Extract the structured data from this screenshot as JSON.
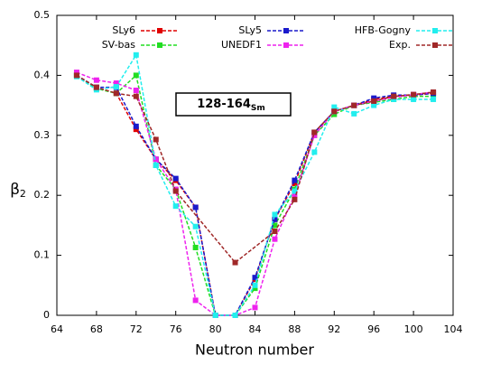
{
  "chart_data": {
    "type": "line",
    "xlabel": "Neutron number",
    "ylabel": {
      "main": "β",
      "sub": "2"
    },
    "annotation": {
      "main": "128-164",
      "sub": "Sm"
    },
    "x": [
      66,
      68,
      70,
      72,
      74,
      76,
      78,
      80,
      82,
      84,
      86,
      88,
      90,
      92,
      94,
      96,
      98,
      100,
      102
    ],
    "xlim": [
      64,
      104
    ],
    "xticks": [
      64,
      68,
      72,
      76,
      80,
      84,
      88,
      92,
      96,
      100,
      104
    ],
    "ylim": [
      0,
      0.5
    ],
    "yticks": [
      0,
      0.1,
      0.2,
      0.3,
      0.4,
      0.5
    ],
    "series": [
      {
        "name": "SLy6",
        "color": "#e00000",
        "values": [
          0.4,
          0.38,
          0.37,
          0.31,
          0.26,
          0.225,
          0.18,
          0,
          0,
          0.06,
          0.16,
          0.22,
          0.305,
          0.34,
          0.35,
          0.36,
          0.365,
          0.367,
          0.37
        ]
      },
      {
        "name": "SV-bas",
        "color": "#22dd22",
        "values": [
          0.4,
          0.378,
          0.37,
          0.4,
          0.25,
          0.21,
          0.113,
          0,
          0,
          0.045,
          0.15,
          0.21,
          0.3,
          0.335,
          0.35,
          0.355,
          0.36,
          0.365,
          0.365
        ]
      },
      {
        "name": "SLy5",
        "color": "#1a1acc",
        "values": [
          0.4,
          0.38,
          0.38,
          0.315,
          0.26,
          0.228,
          0.18,
          0,
          0,
          0.063,
          0.16,
          0.225,
          0.305,
          0.34,
          0.35,
          0.362,
          0.367,
          0.367,
          0.37
        ]
      },
      {
        "name": "UNEDF1",
        "color": "#ee22ee",
        "values": [
          0.405,
          0.392,
          0.387,
          0.375,
          0.26,
          0.21,
          0.025,
          0,
          0,
          0.013,
          0.127,
          0.2,
          0.3,
          0.34,
          0.35,
          0.357,
          0.363,
          0.368,
          0.372
        ]
      },
      {
        "name": "HFB-Gogny",
        "color": "#22eeee",
        "values": [
          0.398,
          0.376,
          0.381,
          0.434,
          0.25,
          0.182,
          0.148,
          0,
          0,
          0.05,
          0.168,
          0.207,
          0.272,
          0.347,
          0.336,
          0.35,
          0.36,
          0.36,
          0.36
        ]
      },
      {
        "name": "Exp.",
        "color": "#a02828",
        "x": [
          66,
          68,
          70,
          72,
          74,
          76,
          82,
          86,
          88,
          90,
          92,
          94,
          96,
          98,
          100,
          102
        ],
        "values": [
          0.4,
          0.38,
          0.37,
          0.365,
          0.293,
          0.207,
          0.088,
          0.14,
          0.193,
          0.305,
          0.34,
          0.35,
          0.357,
          0.365,
          0.368,
          0.372
        ]
      }
    ]
  }
}
